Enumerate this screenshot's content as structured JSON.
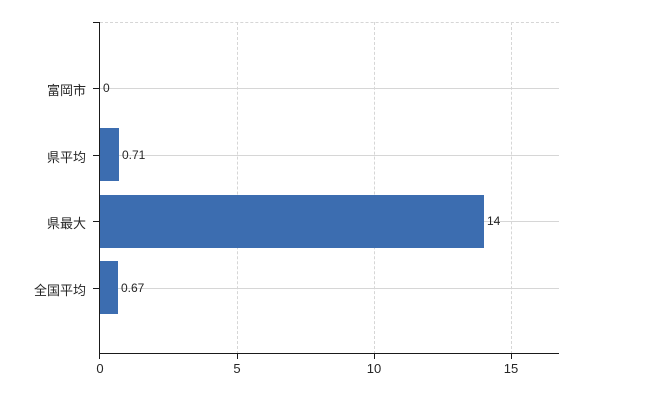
{
  "page": {
    "background": "#ffffff"
  },
  "chart_data": {
    "type": "bar",
    "orientation": "horizontal",
    "title": "",
    "xlabel": "",
    "ylabel": "",
    "categories": [
      "富岡市",
      "県平均",
      "県最大",
      "全国平均"
    ],
    "values": [
      0,
      0.71,
      14,
      0.67
    ],
    "value_labels": [
      "0",
      "0.71",
      "14",
      "0.67"
    ],
    "x_ticks": [
      0,
      5,
      10,
      15
    ],
    "x_tick_labels": [
      "0",
      "5",
      "10",
      "15"
    ],
    "xlim": [
      0,
      16.75
    ],
    "grid": true,
    "legend": false,
    "colors": {
      "bar": "#3c6db0",
      "grid": "#d6d6d6",
      "axis": "#1a1a1a",
      "text": "#262626"
    }
  }
}
